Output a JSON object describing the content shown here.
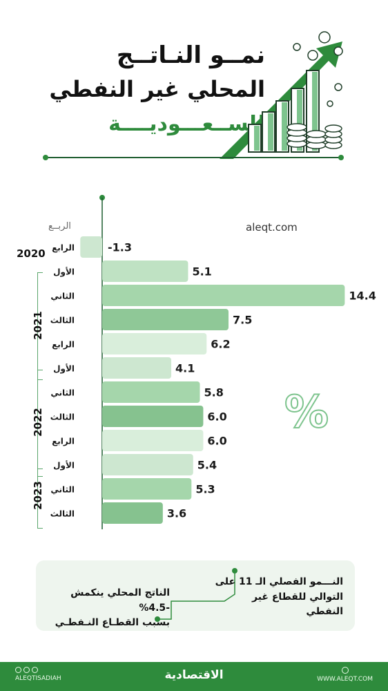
{
  "header": {
    "line1": "نمــو النـاتــج",
    "line2": "المحلي غير النفطي",
    "line3": "للســعـــوديــــة"
  },
  "chart_data": {
    "type": "bar",
    "orientation": "horizontal",
    "source_label": "aleqt.com",
    "quarter_header": "الربــع",
    "unit_symbol": "%",
    "bars": [
      {
        "year": "2020",
        "quarter": "الرابع",
        "value_label": "-1.3",
        "value": -1.3,
        "color": "#cde7d0"
      },
      {
        "year": "2021",
        "quarter": "الأول",
        "value_label": "5.1",
        "value": 5.1,
        "color": "#bfe2c3"
      },
      {
        "year": "2021",
        "quarter": "الثاني",
        "value_label": "14.4",
        "value": 14.4,
        "color": "#a5d6ab"
      },
      {
        "year": "2021",
        "quarter": "الثالث",
        "value_label": "7.5",
        "value": 7.5,
        "color": "#8fc897"
      },
      {
        "year": "2021",
        "quarter": "الرابع",
        "value_label": "6.2",
        "value": 6.2,
        "color": "#d9eedb"
      },
      {
        "year": "2022",
        "quarter": "الأول",
        "value_label": "4.1",
        "value": 4.1,
        "color": "#cde7d0"
      },
      {
        "year": "2022",
        "quarter": "الثاني",
        "value_label": "5.8",
        "value": 5.8,
        "color": "#a5d6ab"
      },
      {
        "year": "2022",
        "quarter": "الثالث",
        "value_label": "6.0",
        "value": 6.0,
        "color": "#86c28f"
      },
      {
        "year": "2022",
        "quarter": "الرابع",
        "value_label": "6.0",
        "value": 6.0,
        "color": "#d9eedb"
      },
      {
        "year": "2023",
        "quarter": "الأول",
        "value_label": "5.4",
        "value": 5.4,
        "color": "#cde7d0"
      },
      {
        "year": "2023",
        "quarter": "الثاني",
        "value_label": "5.3",
        "value": 5.3,
        "color": "#a5d6ab"
      },
      {
        "year": "2023",
        "quarter": "الثالث",
        "value_label": "3.6",
        "value": 3.6,
        "color": "#86c28f"
      }
    ],
    "year_labels": {
      "y2020": "2020",
      "y2021": "2021",
      "y2022": "2022",
      "y2023": "2023"
    }
  },
  "notes": {
    "right_line1": "النـــمو الفصلي الـ 11 على",
    "right_line2": "التوالي للقطاع غير النفطي",
    "left_line1": "الناتج المحلي ينكمش -4.5%",
    "left_line2": "بسبب القطـاع النـفطـي"
  },
  "footer": {
    "social_handle": "ALEQTISADIAH",
    "brand": "الاقتصادية",
    "website": "WWW.ALEQT.COM"
  },
  "colors": {
    "accent": "#2e8b3c",
    "dark_line": "#1f5e30"
  }
}
